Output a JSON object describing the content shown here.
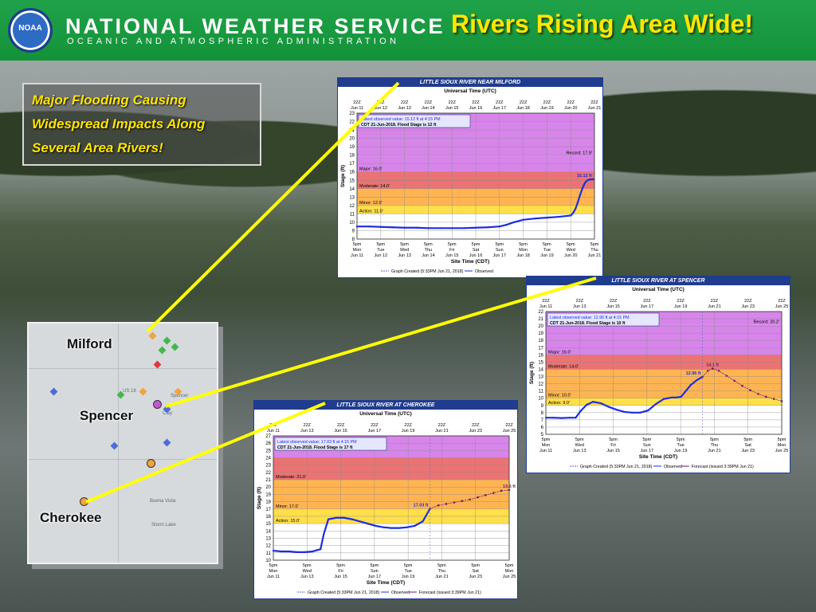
{
  "header": {
    "org_name": "NATIONAL WEATHER SERVICE",
    "org_sub": "OCEANIC AND ATMOSPHERIC ADMINISTRATION",
    "logo_text": "NOAA",
    "headline": "Rivers Rising Area Wide!"
  },
  "callout": {
    "lines": [
      "Major Flooding Causing",
      "Widespread Impacts Along",
      "Several Area Rivers!"
    ]
  },
  "map": {
    "towns": [
      "Milford",
      "Spencer",
      "Cherokee"
    ],
    "places": [
      "US 18",
      "Clay",
      "Buena Vista",
      "Storm Lake",
      "Spencer"
    ]
  },
  "colors": {
    "record": "#d070e6",
    "major": "#e85a5a",
    "moderate": "#ffa733",
    "minor": "#ffdf4a",
    "action": "#ffff80",
    "observed": "#1b2ee0",
    "forecast": "#6a1f6a",
    "header": "#1a9d43",
    "headline": "#ffe600",
    "pointer": "#ffff00"
  },
  "chart_data": [
    {
      "type": "line",
      "title": "LITTLE SIOUX RIVER NEAR MILFORD",
      "top_axis_title": "Universal Time (UTC)",
      "top_ticks": [
        "22Z\nJun 11",
        "22Z\nJun 12",
        "22Z\nJun 13",
        "22Z\nJun 14",
        "22Z\nJun 15",
        "22Z\nJun 16",
        "22Z\nJun 17",
        "22Z\nJun 18",
        "22Z\nJun 19",
        "22Z\nJun 20",
        "22Z\nJun 21"
      ],
      "bottom_ticks": [
        "5pm\nMon\nJun 11",
        "5pm\nTue\nJun 12",
        "5pm\nWed\nJun 13",
        "5pm\nThu\nJun 14",
        "5pm\nFri\nJun 15",
        "5pm\nSat\nJun 16",
        "5pm\nSun\nJun 17",
        "5pm\nMon\nJun 18",
        "5pm\nTue\nJun 19",
        "5pm\nWed\nJun 20",
        "5pm\nThu\nJun 21"
      ],
      "xlabel": "Site Time (CDT)",
      "ylabel": "Stage (ft)",
      "ylim": [
        8,
        23
      ],
      "yticks": [
        8,
        9,
        10,
        11,
        12,
        13,
        14,
        15,
        16,
        17,
        18,
        19,
        20,
        21,
        22,
        23
      ],
      "xlim": [
        0,
        10
      ],
      "stages": {
        "record": 17.9,
        "major": 16,
        "moderate": 14,
        "minor": 12,
        "action": 11
      },
      "stage_labels": [
        "Record: 17.9'",
        "Major: 16.0'",
        "Moderate: 14.0'",
        "Minor: 12.0'",
        "Action: 11.0'"
      ],
      "info": [
        "Latest observed value: 15.12 ft at 4:15 PM",
        "CDT 21-Jun-2018.  Flood Stage is 12 ft"
      ],
      "latest_label": "15.12 ft",
      "observed": {
        "x": [
          0,
          0.5,
          1,
          1.5,
          2,
          2.5,
          3,
          3.5,
          4,
          4.5,
          5,
          5.5,
          6,
          6.3,
          6.6,
          7,
          7.5,
          8,
          8.5,
          9,
          9.1,
          9.2,
          9.3,
          9.4,
          9.5,
          9.6,
          9.7,
          9.8,
          9.96
        ],
        "y": [
          9.5,
          9.5,
          9.45,
          9.4,
          9.35,
          9.35,
          9.3,
          9.3,
          9.3,
          9.3,
          9.35,
          9.4,
          9.5,
          9.7,
          10.0,
          10.3,
          10.45,
          10.55,
          10.65,
          10.8,
          11.1,
          11.6,
          12.4,
          13.3,
          14.1,
          14.7,
          15.0,
          15.1,
          15.12
        ]
      },
      "legend": [
        "Graph Created (5:33PM Jun 21, 2018)",
        "Observed"
      ]
    },
    {
      "type": "line",
      "title": "LITTLE SIOUX RIVER AT SPENCER",
      "top_axis_title": "Universal Time (UTC)",
      "top_ticks": [
        "22Z\nJun 11",
        "22Z\nJun 13",
        "22Z\nJun 15",
        "22Z\nJun 17",
        "22Z\nJun 19",
        "22Z\nJun 21",
        "22Z\nJun 23",
        "22Z\nJun 25"
      ],
      "bottom_ticks": [
        "5pm\nMon\nJun 11",
        "5pm\nWed\nJun 13",
        "5pm\nFri\nJun 15",
        "5pm\nSun\nJun 17",
        "5pm\nTue\nJun 19",
        "5pm\nThu\nJun 21",
        "5pm\nSat\nJun 23",
        "5pm\nMon\nJun 25"
      ],
      "xlabel": "Site Time (CDT)",
      "ylabel": "Stage (ft)",
      "ylim": [
        5,
        22
      ],
      "yticks": [
        5,
        6,
        7,
        8,
        9,
        10,
        11,
        12,
        13,
        14,
        15,
        16,
        17,
        18,
        19,
        20,
        21,
        22
      ],
      "xlim": [
        0,
        15
      ],
      "stages": {
        "record": 20.2,
        "major": 16,
        "moderate": 14,
        "minor": 10,
        "action": 9
      },
      "stage_labels": [
        "Record: 20.2'",
        "Major: 16.0'",
        "Moderate: 14.0'",
        "Minor: 10.0'",
        "Action: 9.0'"
      ],
      "info": [
        "Latest observed value: 12.96 ft at 4:15 PM",
        "CDT 21-Jun-2018.  Flood Stage is 10 ft"
      ],
      "latest_label": "12.96 ft",
      "peak_label": "14.1 ft",
      "observed": {
        "x": [
          0,
          0.5,
          1,
          1.5,
          1.9,
          2.2,
          2.6,
          3,
          3.5,
          4,
          4.5,
          5,
          5.5,
          6,
          6.5,
          7,
          7.5,
          8,
          8.3,
          8.6,
          8.9,
          9.2,
          9.6,
          9.96
        ],
        "y": [
          7.3,
          7.3,
          7.25,
          7.3,
          7.3,
          8.2,
          9.1,
          9.5,
          9.3,
          8.8,
          8.4,
          8.1,
          8.0,
          8.0,
          8.3,
          9.2,
          9.9,
          10.1,
          10.1,
          10.2,
          11.0,
          11.8,
          12.5,
          12.96
        ]
      },
      "forecast": {
        "x": [
          9.96,
          10.3,
          10.6,
          11,
          11.5,
          12,
          12.5,
          13,
          13.5,
          14,
          14.5,
          15
        ],
        "y": [
          12.96,
          13.8,
          14.1,
          13.8,
          13.1,
          12.4,
          11.7,
          11.1,
          10.6,
          10.2,
          9.9,
          9.6
        ]
      },
      "legend": [
        "Graph Created (5:33PM Jun 21, 2018)",
        "Observed",
        "Forecast (issued 3:39PM Jun 21)"
      ]
    },
    {
      "type": "line",
      "title": "LITTLE SIOUX RIVER AT CHEROKEE",
      "top_axis_title": "Universal Time (UTC)",
      "top_ticks": [
        "22Z\nJun 11",
        "22Z\nJun 13",
        "22Z\nJun 15",
        "22Z\nJun 17",
        "22Z\nJun 19",
        "22Z\nJun 21",
        "22Z\nJun 23",
        "22Z\nJun 25"
      ],
      "bottom_ticks": [
        "5pm\nMon\nJun 11",
        "5pm\nWed\nJun 13",
        "5pm\nFri\nJun 15",
        "5pm\nSun\nJun 17",
        "5pm\nTue\nJun 19",
        "5pm\nThu\nJun 21",
        "5pm\nSat\nJun 23",
        "5pm\nMon\nJun 25"
      ],
      "xlabel": "Site Time (CDT)",
      "ylabel": "Stage (ft)",
      "ylim": [
        10,
        27
      ],
      "yticks": [
        10,
        11,
        12,
        13,
        14,
        15,
        16,
        17,
        18,
        19,
        20,
        21,
        22,
        23,
        24,
        25,
        26,
        27
      ],
      "xlim": [
        0,
        15
      ],
      "stages": {
        "record": 25,
        "major": 24,
        "moderate": 21,
        "minor": 17,
        "action": 15
      },
      "stage_labels": [
        "Moderate: 21.0'",
        "Minor: 17.0'",
        "Action: 15.0'"
      ],
      "info": [
        "Latest observed value: 17.03 ft at 4:15 PM",
        "CDT 21-Jun-2018.  Flood Stage is 17 ft"
      ],
      "latest_label": "17.03 ft",
      "peak_label": "19.6 ft",
      "observed": {
        "x": [
          0,
          0.5,
          1,
          1.5,
          2,
          2.5,
          3,
          3.2,
          3.5,
          4,
          4.5,
          5,
          5.5,
          6,
          6.5,
          7,
          7.5,
          8,
          8.5,
          9,
          9.5,
          9.96
        ],
        "y": [
          11.3,
          11.2,
          11.2,
          11.1,
          11.1,
          11.2,
          11.5,
          13.5,
          15.6,
          15.8,
          15.8,
          15.6,
          15.3,
          15.0,
          14.7,
          14.5,
          14.4,
          14.4,
          14.5,
          14.7,
          15.3,
          17.03
        ]
      },
      "forecast": {
        "x": [
          9.96,
          10.5,
          11,
          11.5,
          12,
          12.5,
          13,
          13.5,
          14,
          14.5,
          15
        ],
        "y": [
          17.03,
          17.5,
          17.7,
          17.9,
          18.1,
          18.3,
          18.6,
          18.9,
          19.2,
          19.5,
          19.6
        ]
      },
      "legend": [
        "Graph Created (5:33PM Jun 21, 2018)",
        "Observed",
        "Forecast (issued 3:39PM Jun 21)"
      ]
    }
  ]
}
